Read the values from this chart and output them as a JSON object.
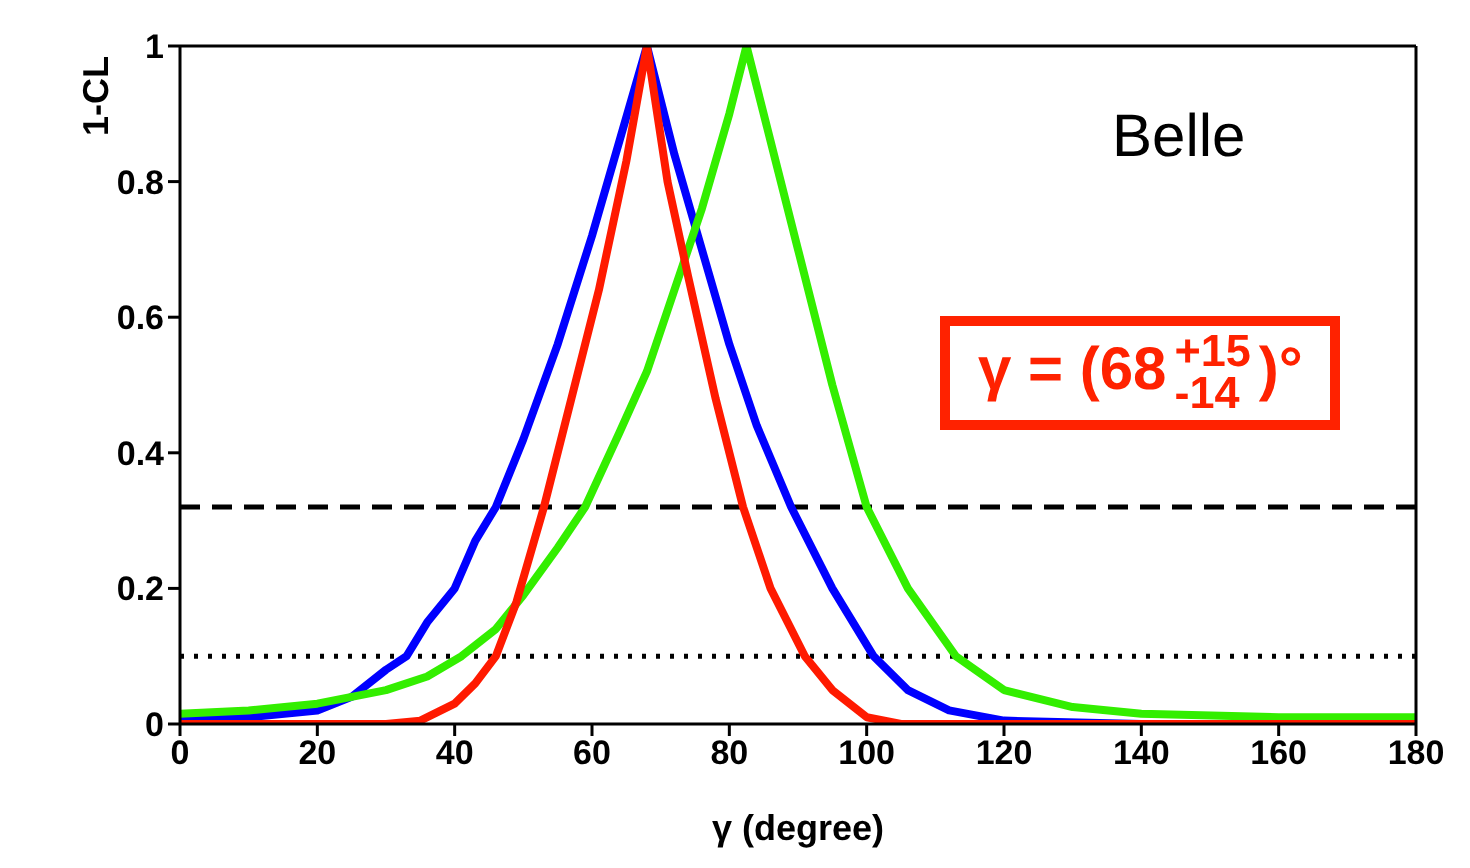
{
  "chart_data": {
    "type": "line",
    "xlabel": "γ (degree)",
    "ylabel": "1-CL",
    "xlim": [
      0,
      180
    ],
    "xticks": [
      0,
      20,
      40,
      60,
      80,
      100,
      120,
      140,
      160,
      180
    ],
    "ylim": [
      0,
      1
    ],
    "yticks": [
      0,
      0.2,
      0.4,
      0.6,
      0.8,
      1
    ],
    "marker": "none",
    "line_style": "solid",
    "annotations": [
      "Belle",
      "γ = (68$^{+15}$$_{-14}$)°"
    ],
    "ref_lines": [
      {
        "axis": "y",
        "value": 0.32,
        "color": "#000000",
        "line_style": "dashed"
      },
      {
        "axis": "y",
        "value": 0.1,
        "color": "#000000",
        "line_style": "dotted"
      }
    ],
    "series": [
      {
        "color": "#0000ff",
        "x": [
          0,
          10,
          20,
          25,
          30,
          33,
          36,
          40,
          43,
          46,
          50,
          55,
          60,
          64,
          68,
          72,
          76,
          80,
          84,
          89,
          95,
          101,
          106,
          112,
          120,
          140,
          180
        ],
        "values": [
          0.005,
          0.01,
          0.02,
          0.04,
          0.08,
          0.1,
          0.15,
          0.2,
          0.27,
          0.32,
          0.42,
          0.56,
          0.72,
          0.86,
          1,
          0.84,
          0.7,
          0.56,
          0.44,
          0.32,
          0.2,
          0.1,
          0.05,
          0.02,
          0.005,
          0,
          0
        ]
      },
      {
        "color": "#33ee00",
        "x": [
          0,
          10,
          20,
          30,
          36,
          41,
          46,
          50,
          55,
          59,
          64,
          68,
          72,
          76,
          80,
          82.5,
          86,
          90,
          95,
          100,
          106,
          113,
          120,
          130,
          140,
          160,
          180
        ],
        "values": [
          0.015,
          0.02,
          0.03,
          0.05,
          0.07,
          0.1,
          0.14,
          0.19,
          0.26,
          0.32,
          0.43,
          0.52,
          0.64,
          0.76,
          0.9,
          1,
          0.86,
          0.7,
          0.5,
          0.32,
          0.2,
          0.1,
          0.05,
          0.025,
          0.015,
          0.01,
          0.01
        ]
      },
      {
        "color": "#ff1a00",
        "x": [
          0,
          30,
          35,
          40,
          43,
          46,
          49,
          53,
          57,
          61,
          65,
          68,
          71,
          74,
          78,
          82,
          86,
          91,
          95,
          100,
          105,
          180
        ],
        "values": [
          0,
          0,
          0.005,
          0.03,
          0.06,
          0.1,
          0.18,
          0.32,
          0.48,
          0.64,
          0.83,
          1,
          0.8,
          0.66,
          0.48,
          0.32,
          0.2,
          0.1,
          0.05,
          0.01,
          0,
          0
        ]
      }
    ]
  }
}
